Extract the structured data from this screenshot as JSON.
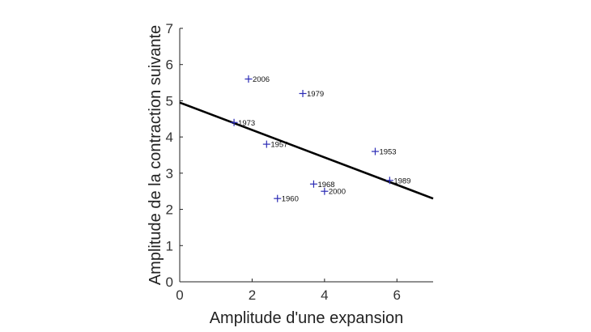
{
  "chart_data": {
    "type": "scatter",
    "title": "",
    "xlabel": "Amplitude d'une expansion",
    "ylabel": "Amplitude de la contraction suivante",
    "xlim": [
      0,
      7
    ],
    "ylim": [
      0,
      7
    ],
    "xticks": [
      "0",
      "2",
      "4",
      "6"
    ],
    "yticks": [
      "0",
      "1",
      "2",
      "3",
      "4",
      "5",
      "6",
      "7"
    ],
    "grid": false,
    "marker_color": "#2b2bb5",
    "points": [
      {
        "label": "2006",
        "x": 1.9,
        "y": 5.6
      },
      {
        "label": "1979",
        "x": 3.4,
        "y": 5.2
      },
      {
        "label": "1973",
        "x": 1.5,
        "y": 4.4
      },
      {
        "label": "1957",
        "x": 2.4,
        "y": 3.8
      },
      {
        "label": "1953",
        "x": 5.4,
        "y": 3.6
      },
      {
        "label": "1989",
        "x": 5.8,
        "y": 2.8
      },
      {
        "label": "1968",
        "x": 3.7,
        "y": 2.7
      },
      {
        "label": "2000",
        "x": 4.0,
        "y": 2.5
      },
      {
        "label": "1960",
        "x": 2.7,
        "y": 2.3
      }
    ],
    "trend_line": {
      "x": [
        0,
        7
      ],
      "y": [
        4.95,
        2.3
      ]
    }
  }
}
